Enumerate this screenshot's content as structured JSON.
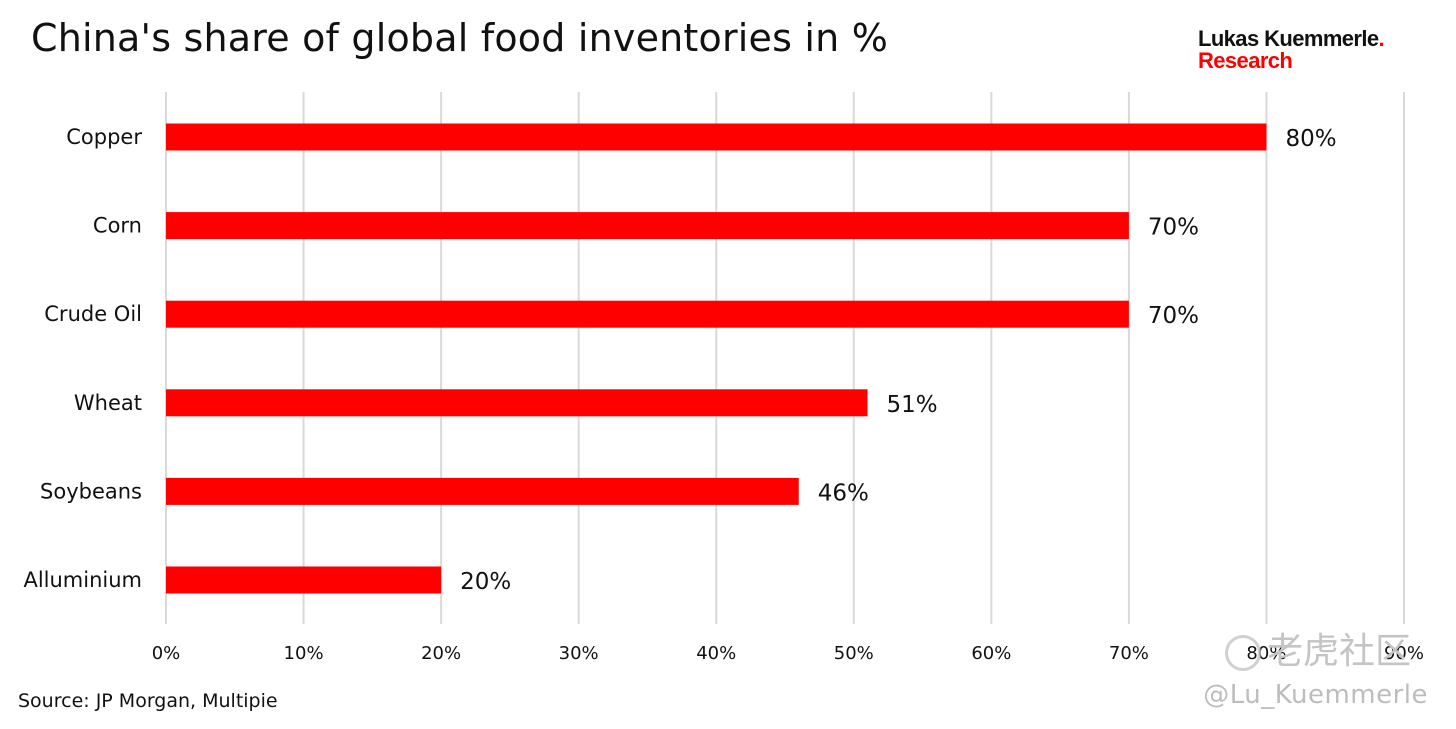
{
  "chart_data": {
    "type": "bar",
    "orientation": "horizontal",
    "title": "China's share of global food inventories in %",
    "categories": [
      "Copper",
      "Corn",
      "Crude Oil",
      "Wheat",
      "Soybeans",
      "Alluminium"
    ],
    "values": [
      80,
      70,
      70,
      51,
      46,
      20
    ],
    "value_labels": [
      "80%",
      "70%",
      "70%",
      "51%",
      "46%",
      "20%"
    ],
    "xlim": [
      0,
      90
    ],
    "x_ticks": [
      0,
      10,
      20,
      30,
      40,
      50,
      60,
      70,
      80,
      90
    ],
    "x_tick_labels": [
      "0%",
      "10%",
      "20%",
      "30%",
      "40%",
      "50%",
      "60%",
      "70%",
      "80%",
      "90%"
    ],
    "grid": "vertical",
    "bar_color": "#ff0000"
  },
  "brand": {
    "name": "Lukas Kuemmerle",
    "dot": ".",
    "sub": "Research"
  },
  "source": "Source: JP Morgan, Multipie",
  "watermark": {
    "handle": "@Lu_Kuemmerle",
    "logo_text": "老虎社区"
  }
}
